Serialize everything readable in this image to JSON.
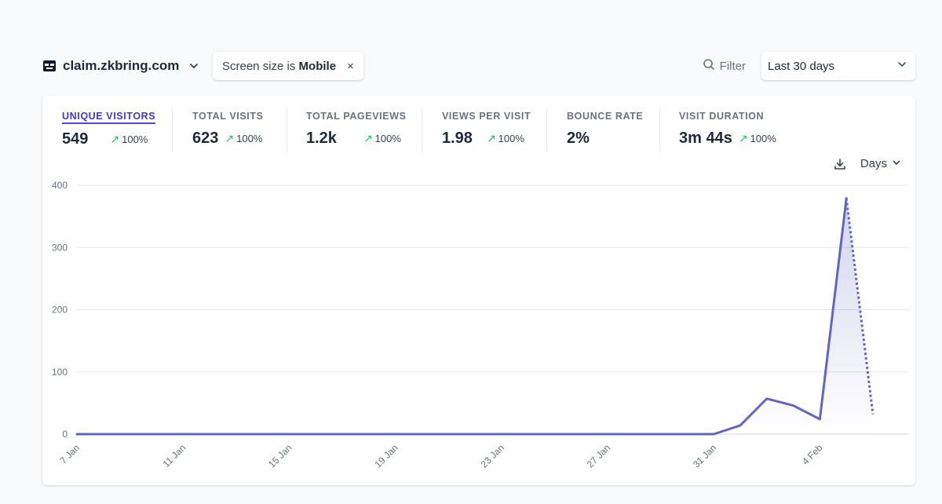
{
  "header": {
    "site_name": "claim.zkbring.com",
    "filter_prefix": "Screen size is ",
    "filter_value": "Mobile",
    "filter_remove": "×",
    "filter_label": "Filter",
    "period_label": "Last 30 days"
  },
  "metrics": [
    {
      "label": "Unique visitors",
      "value": "549",
      "change": "100%",
      "change_icon": "arrow-up-right-icon"
    },
    {
      "label": "Total visits",
      "value": "623",
      "change": "100%",
      "change_icon": "arrow-up-right-icon"
    },
    {
      "label": "Total pageviews",
      "value": "1.2k",
      "change": "100%",
      "change_icon": "arrow-up-right-icon"
    },
    {
      "label": "Views per visit",
      "value": "1.98",
      "change": "100%",
      "change_icon": "arrow-up-right-icon"
    },
    {
      "label": "Bounce rate",
      "value": "2%"
    },
    {
      "label": "Visit duration",
      "value": "3m 44s",
      "change": "100%",
      "change_icon": "arrow-up-right-icon"
    }
  ],
  "chart_tools": {
    "interval_label": "Days"
  },
  "colors": {
    "accent": "#4f46e5",
    "line": "#6366c1",
    "positive": "#22c55e"
  },
  "chart_data": {
    "type": "line",
    "title": "",
    "xlabel": "",
    "ylabel": "",
    "ylim": [
      0,
      400
    ],
    "yticks": [
      0,
      100,
      200,
      300,
      400
    ],
    "xticks": [
      "7 Jan",
      "11 Jan",
      "15 Jan",
      "19 Jan",
      "23 Jan",
      "27 Jan",
      "31 Jan",
      "4 Feb"
    ],
    "x": [
      "7 Jan",
      "8 Jan",
      "9 Jan",
      "10 Jan",
      "11 Jan",
      "12 Jan",
      "13 Jan",
      "14 Jan",
      "15 Jan",
      "16 Jan",
      "17 Jan",
      "18 Jan",
      "19 Jan",
      "20 Jan",
      "21 Jan",
      "22 Jan",
      "23 Jan",
      "24 Jan",
      "25 Jan",
      "26 Jan",
      "27 Jan",
      "28 Jan",
      "29 Jan",
      "30 Jan",
      "31 Jan",
      "1 Feb",
      "2 Feb",
      "3 Feb",
      "4 Feb",
      "5 Feb",
      "6 Feb"
    ],
    "values": [
      0,
      0,
      0,
      0,
      0,
      0,
      0,
      0,
      0,
      0,
      0,
      0,
      0,
      0,
      0,
      0,
      0,
      0,
      0,
      0,
      0,
      0,
      0,
      0,
      0,
      14,
      57,
      46,
      24,
      379,
      32
    ],
    "incomplete_from_index": 29,
    "grid": true,
    "legend": "none"
  }
}
